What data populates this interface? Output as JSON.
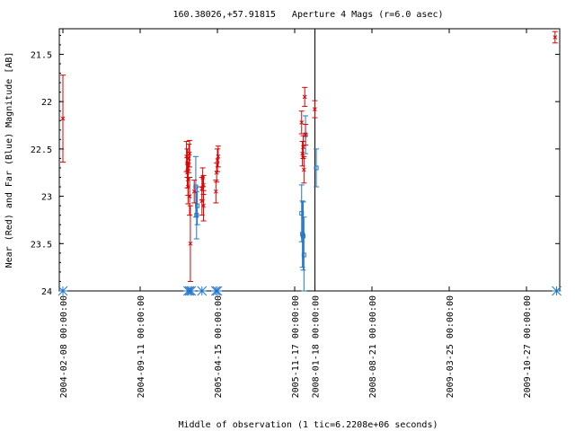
{
  "chart_data": {
    "type": "scatter",
    "title": "160.38026,+57.91815   Aperture 4 Mags (r=6.0 asec)",
    "xlabel": "Middle of observation (1 tic=6.2208e+06 seconds)",
    "ylabel": "Near (Red) and Far (Blue) Magnitude [AB]",
    "x_ticks": [
      {
        "t": 0.0,
        "label": "2004-02-08 00:00:00"
      },
      {
        "t": 1.0,
        "label": "2004-09-11 00:00:00"
      },
      {
        "t": 2.0,
        "label": "2005-04-15 00:00:00"
      },
      {
        "t": 3.0,
        "label": "2005-11-17 00:00:00"
      },
      {
        "t": 3.262,
        "label": "2008-01-18 00:00:00"
      },
      {
        "t": 4.0,
        "label": "2008-08-21 00:00:00"
      },
      {
        "t": 5.0,
        "label": "2009-03-25 00:00:00"
      },
      {
        "t": 6.0,
        "label": "2009-10-27 00:00:00"
      }
    ],
    "y_ticks": [
      "21.5",
      "22",
      "22.5",
      "23",
      "23.5",
      "24"
    ],
    "y_tick_values": [
      21.5,
      22,
      22.5,
      23,
      23.5,
      24
    ],
    "xlim": [
      -0.04,
      6.4
    ],
    "ylim": [
      21.23,
      24.0
    ],
    "y_inverted": true,
    "vertical_line_t": 3.262,
    "colors": {
      "near": "#dd0000",
      "far": "#2277cc",
      "axis": "#000000"
    },
    "series": [
      {
        "name": "Near (Red)",
        "marker": "x",
        "points": [
          {
            "t": 0.0,
            "y": 22.18,
            "err": 0.46
          },
          {
            "t": 1.6,
            "y": 22.58,
            "err": 0.16
          },
          {
            "t": 1.61,
            "y": 22.65,
            "err": 0.15
          },
          {
            "t": 1.61,
            "y": 22.75,
            "err": 0.16
          },
          {
            "t": 1.62,
            "y": 22.82,
            "err": 0.17
          },
          {
            "t": 1.62,
            "y": 22.9,
            "err": 0.18
          },
          {
            "t": 1.63,
            "y": 22.6,
            "err": 0.15
          },
          {
            "t": 1.64,
            "y": 23.0,
            "err": 0.2
          },
          {
            "t": 1.64,
            "y": 22.55,
            "err": 0.14
          },
          {
            "t": 1.65,
            "y": 23.5,
            "err": 0.4
          },
          {
            "t": 1.7,
            "y": 22.95,
            "err": 0.12
          },
          {
            "t": 1.8,
            "y": 23.05,
            "err": 0.15
          },
          {
            "t": 1.8,
            "y": 22.92,
            "err": 0.12
          },
          {
            "t": 1.81,
            "y": 22.8,
            "err": 0.1
          },
          {
            "t": 1.82,
            "y": 23.1,
            "err": 0.16
          },
          {
            "t": 1.82,
            "y": 22.88,
            "err": 0.1
          },
          {
            "t": 1.98,
            "y": 22.95,
            "err": 0.12
          },
          {
            "t": 1.99,
            "y": 22.75,
            "err": 0.1
          },
          {
            "t": 2.0,
            "y": 22.62,
            "err": 0.12
          },
          {
            "t": 2.01,
            "y": 22.58,
            "err": 0.11
          },
          {
            "t": 3.09,
            "y": 22.22,
            "err": 0.12
          },
          {
            "t": 3.1,
            "y": 22.55,
            "err": 0.13
          },
          {
            "t": 3.11,
            "y": 22.48,
            "err": 0.12
          },
          {
            "t": 3.12,
            "y": 22.72,
            "err": 0.14
          },
          {
            "t": 3.13,
            "y": 21.95,
            "err": 0.1
          },
          {
            "t": 3.14,
            "y": 22.35,
            "err": 0.11
          },
          {
            "t": 3.26,
            "y": 22.08,
            "err": 0.09
          },
          {
            "t": 6.37,
            "y": 21.32,
            "err": 0.06
          }
        ]
      },
      {
        "name": "Far (Blue)",
        "marker": "square",
        "points": [
          {
            "t": 1.72,
            "y": 22.9,
            "err": 0.32
          },
          {
            "t": 1.73,
            "y": 23.2,
            "err": 0.25
          },
          {
            "t": 1.74,
            "y": 23.1,
            "err": 0.2
          },
          {
            "t": 3.09,
            "y": 23.18,
            "err": 0.3
          },
          {
            "t": 3.1,
            "y": 23.4,
            "err": 0.35
          },
          {
            "t": 3.11,
            "y": 23.42,
            "err": 0.36
          },
          {
            "t": 3.12,
            "y": 23.62,
            "err": 0.4
          },
          {
            "t": 3.14,
            "y": 22.35,
            "err": 0.2
          },
          {
            "t": 3.28,
            "y": 22.7,
            "err": 0.2
          }
        ]
      },
      {
        "name": "Limits (Blue)",
        "marker": "asterisk",
        "points": [
          {
            "t": 0.0,
            "y": 24.0
          },
          {
            "t": 1.62,
            "y": 24.0
          },
          {
            "t": 1.64,
            "y": 24.0
          },
          {
            "t": 1.66,
            "y": 24.0
          },
          {
            "t": 1.8,
            "y": 24.0
          },
          {
            "t": 1.98,
            "y": 24.0
          },
          {
            "t": 2.0,
            "y": 24.0
          },
          {
            "t": 6.39,
            "y": 24.0
          }
        ]
      }
    ]
  }
}
